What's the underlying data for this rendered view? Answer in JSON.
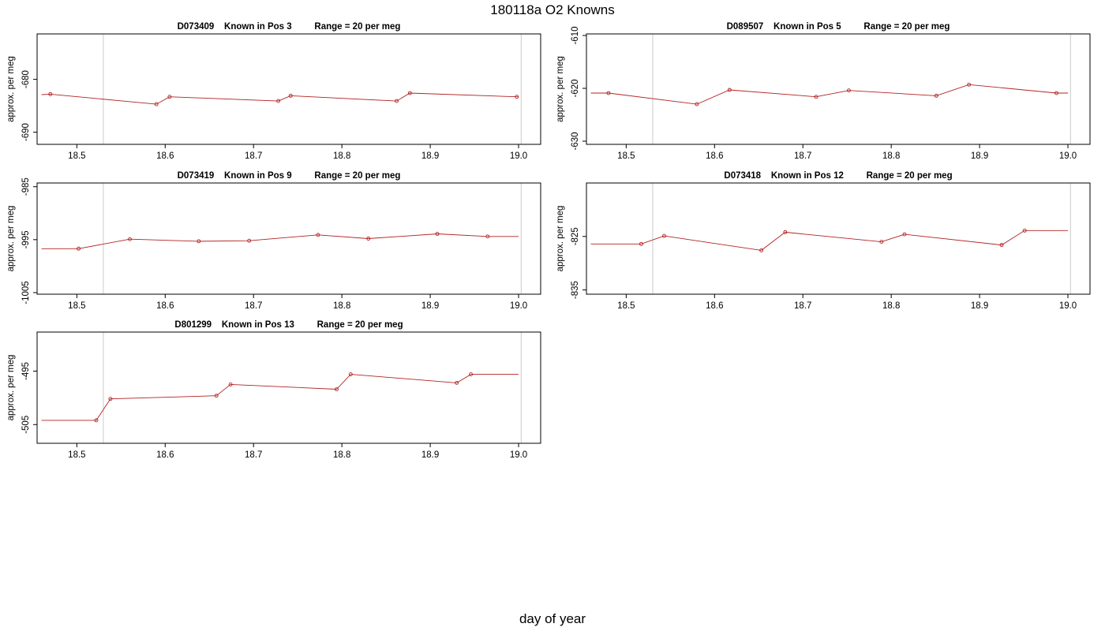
{
  "figure": {
    "title": "180118a   O2 Knowns",
    "xlabel": "day of year"
  },
  "colors": {
    "line": "#b22222",
    "marker": "#b22222",
    "vline": "#d3d3d3",
    "frame": "#000000"
  },
  "chart_data": [
    {
      "type": "line",
      "title": "D073409    Known in Pos 3         Range = 20 per meg",
      "ylabel": "approx. per meg",
      "xlim": [
        18.455,
        19.025
      ],
      "ylim": [
        -692.3,
        -671.4
      ],
      "xticks": [
        18.5,
        18.6,
        18.7,
        18.8,
        18.9,
        19.0
      ],
      "yticks": [
        -680,
        -690
      ],
      "vlines": [
        18.53,
        19.003
      ],
      "x": [
        18.46,
        18.47,
        18.59,
        18.605,
        18.728,
        18.742,
        18.862,
        18.877,
        18.998,
        19.0
      ],
      "y": [
        -682.9,
        -682.8,
        -684.7,
        -683.3,
        -684.1,
        -683.1,
        -684.1,
        -682.6,
        -683.3,
        -683.3
      ],
      "markers": [
        false,
        true,
        true,
        true,
        true,
        true,
        true,
        true,
        true,
        false
      ]
    },
    {
      "type": "line",
      "title": "D089507    Known in Pos 5         Range = 20 per meg",
      "ylabel": "approx. per meg",
      "xlim": [
        18.455,
        19.025
      ],
      "ylim": [
        -630.6,
        -609.7
      ],
      "xticks": [
        18.5,
        18.6,
        18.7,
        18.8,
        18.9,
        19.0
      ],
      "yticks": [
        -610,
        -620,
        -630
      ],
      "vlines": [
        18.53,
        19.003
      ],
      "x": [
        18.46,
        18.48,
        18.58,
        18.617,
        18.715,
        18.752,
        18.851,
        18.888,
        18.987,
        19.0
      ],
      "y": [
        -620.9,
        -620.9,
        -623.0,
        -620.3,
        -621.6,
        -620.4,
        -621.4,
        -619.3,
        -620.9,
        -620.9
      ],
      "markers": [
        false,
        true,
        true,
        true,
        true,
        true,
        true,
        true,
        true,
        false
      ]
    },
    {
      "type": "line",
      "title": "D073419    Known in Pos 9         Range = 20 per meg",
      "ylabel": "approx. per meg",
      "xlim": [
        18.455,
        19.025
      ],
      "ylim": [
        -1005.3,
        -984.3
      ],
      "xticks": [
        18.5,
        18.6,
        18.7,
        18.8,
        18.9,
        19.0
      ],
      "yticks": [
        -985,
        -995,
        -1005
      ],
      "vlines": [
        18.53,
        19.003
      ],
      "x": [
        18.46,
        18.502,
        18.56,
        18.638,
        18.695,
        18.773,
        18.83,
        18.908,
        18.965,
        19.0
      ],
      "y": [
        -996.7,
        -996.7,
        -994.9,
        -995.3,
        -995.2,
        -994.1,
        -994.8,
        -993.9,
        -994.4,
        -994.4
      ],
      "markers": [
        false,
        true,
        true,
        true,
        true,
        true,
        true,
        true,
        true,
        false
      ]
    },
    {
      "type": "line",
      "title": "D073418    Known in Pos 12         Range = 20 per meg",
      "ylabel": "approx. per meg",
      "xlim": [
        18.455,
        19.025
      ],
      "ylim": [
        -835.8,
        -815.0
      ],
      "xticks": [
        18.5,
        18.6,
        18.7,
        18.8,
        18.9,
        19.0
      ],
      "yticks": [
        -825,
        -835
      ],
      "vlines": [
        18.53,
        19.003
      ],
      "x": [
        18.46,
        18.517,
        18.543,
        18.653,
        18.68,
        18.789,
        18.815,
        18.925,
        18.951,
        19.0
      ],
      "y": [
        -826.4,
        -826.4,
        -824.9,
        -827.6,
        -824.2,
        -826.0,
        -824.6,
        -826.6,
        -823.9,
        -823.9
      ],
      "markers": [
        false,
        true,
        true,
        true,
        true,
        true,
        true,
        true,
        true,
        false
      ]
    },
    {
      "type": "line",
      "title": "D801299    Known in Pos 13         Range = 20 per meg",
      "ylabel": "approx. per meg",
      "xlim": [
        18.455,
        19.025
      ],
      "ylim": [
        -508.5,
        -487.7
      ],
      "xticks": [
        18.5,
        18.6,
        18.7,
        18.8,
        18.9,
        19.0
      ],
      "yticks": [
        -495,
        -505
      ],
      "vlines": [
        18.53,
        19.003
      ],
      "x": [
        18.46,
        18.522,
        18.538,
        18.658,
        18.674,
        18.794,
        18.81,
        18.93,
        18.946,
        19.0
      ],
      "y": [
        -504.2,
        -504.2,
        -500.2,
        -499.6,
        -497.5,
        -498.4,
        -495.6,
        -497.2,
        -495.6,
        -495.6
      ],
      "markers": [
        false,
        true,
        true,
        true,
        true,
        true,
        true,
        true,
        true,
        false
      ]
    }
  ]
}
